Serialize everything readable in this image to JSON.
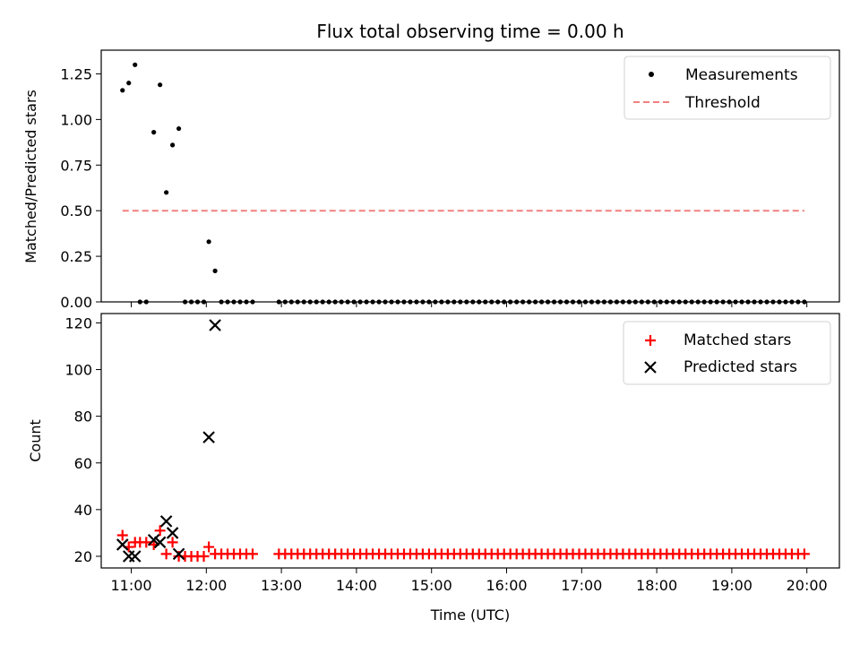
{
  "chart_data": [
    {
      "type": "scatter",
      "title": "Flux total observing time = 0.00 h",
      "xlabel": "",
      "ylabel": "Matched/Predicted stars",
      "xlim": [
        "10:36",
        "20:26"
      ],
      "ylim": [
        0,
        1.38
      ],
      "yticks": [
        "0.00",
        "0.25",
        "0.50",
        "0.75",
        "1.00",
        "1.25"
      ],
      "legend_placement": "top-right",
      "grid": false,
      "series": [
        {
          "name": "Measurements",
          "marker": "dot",
          "color": "#000000",
          "points": [
            {
              "x": "10:53",
              "y": 1.16
            },
            {
              "x": "10:58",
              "y": 1.2
            },
            {
              "x": "11:03",
              "y": 1.3
            },
            {
              "x": "11:07",
              "y": 0.0
            },
            {
              "x": "11:12",
              "y": 0.0
            },
            {
              "x": "11:18",
              "y": 0.93
            },
            {
              "x": "11:23",
              "y": 1.19
            },
            {
              "x": "11:28",
              "y": 0.6
            },
            {
              "x": "11:33",
              "y": 0.86
            },
            {
              "x": "11:38",
              "y": 0.95
            },
            {
              "x": "11:43",
              "y": 0.0
            },
            {
              "x": "11:48",
              "y": 0.0
            },
            {
              "x": "11:53",
              "y": 0.0
            },
            {
              "x": "11:58",
              "y": 0.0
            },
            {
              "x": "12:02",
              "y": 0.33
            },
            {
              "x": "12:07",
              "y": 0.17
            },
            {
              "x": "12:12",
              "y": 0.0
            },
            {
              "x": "12:17",
              "y": 0.0
            },
            {
              "x": "12:22",
              "y": 0.0
            },
            {
              "x": "12:27",
              "y": 0.0
            },
            {
              "x": "12:32",
              "y": 0.0
            },
            {
              "x": "12:37",
              "y": 0.0
            },
            {
              "x": "12:58",
              "y": 0.0
            },
            {
              "x": "13:03",
              "y": 0.0
            },
            {
              "x": "13:08",
              "y": 0.0
            },
            {
              "x": "13:13",
              "y": 0.0
            },
            {
              "x": "13:18",
              "y": 0.0
            },
            {
              "x": "13:23",
              "y": 0.0
            },
            {
              "x": "13:28",
              "y": 0.0
            },
            {
              "x": "13:33",
              "y": 0.0
            },
            {
              "x": "13:38",
              "y": 0.0
            },
            {
              "x": "13:43",
              "y": 0.0
            },
            {
              "x": "13:48",
              "y": 0.0
            },
            {
              "x": "13:53",
              "y": 0.0
            },
            {
              "x": "13:58",
              "y": 0.0
            },
            {
              "x": "14:03",
              "y": 0.0
            },
            {
              "x": "14:08",
              "y": 0.0
            },
            {
              "x": "14:13",
              "y": 0.0
            },
            {
              "x": "14:18",
              "y": 0.0
            },
            {
              "x": "14:23",
              "y": 0.0
            },
            {
              "x": "14:28",
              "y": 0.0
            },
            {
              "x": "14:33",
              "y": 0.0
            },
            {
              "x": "14:38",
              "y": 0.0
            },
            {
              "x": "14:43",
              "y": 0.0
            },
            {
              "x": "14:48",
              "y": 0.0
            },
            {
              "x": "14:53",
              "y": 0.0
            },
            {
              "x": "14:58",
              "y": 0.0
            },
            {
              "x": "15:03",
              "y": 0.0
            },
            {
              "x": "15:08",
              "y": 0.0
            },
            {
              "x": "15:13",
              "y": 0.0
            },
            {
              "x": "15:18",
              "y": 0.0
            },
            {
              "x": "15:23",
              "y": 0.0
            },
            {
              "x": "15:28",
              "y": 0.0
            },
            {
              "x": "15:33",
              "y": 0.0
            },
            {
              "x": "15:38",
              "y": 0.0
            },
            {
              "x": "15:43",
              "y": 0.0
            },
            {
              "x": "15:48",
              "y": 0.0
            },
            {
              "x": "15:53",
              "y": 0.0
            },
            {
              "x": "15:58",
              "y": 0.0
            },
            {
              "x": "16:03",
              "y": 0.0
            },
            {
              "x": "16:08",
              "y": 0.0
            },
            {
              "x": "16:13",
              "y": 0.0
            },
            {
              "x": "16:18",
              "y": 0.0
            },
            {
              "x": "16:23",
              "y": 0.0
            },
            {
              "x": "16:28",
              "y": 0.0
            },
            {
              "x": "16:33",
              "y": 0.0
            },
            {
              "x": "16:38",
              "y": 0.0
            },
            {
              "x": "16:43",
              "y": 0.0
            },
            {
              "x": "16:48",
              "y": 0.0
            },
            {
              "x": "16:53",
              "y": 0.0
            },
            {
              "x": "16:58",
              "y": 0.0
            },
            {
              "x": "17:03",
              "y": 0.0
            },
            {
              "x": "17:08",
              "y": 0.0
            },
            {
              "x": "17:13",
              "y": 0.0
            },
            {
              "x": "17:18",
              "y": 0.0
            },
            {
              "x": "17:23",
              "y": 0.0
            },
            {
              "x": "17:28",
              "y": 0.0
            },
            {
              "x": "17:33",
              "y": 0.0
            },
            {
              "x": "17:38",
              "y": 0.0
            },
            {
              "x": "17:43",
              "y": 0.0
            },
            {
              "x": "17:48",
              "y": 0.0
            },
            {
              "x": "17:53",
              "y": 0.0
            },
            {
              "x": "17:58",
              "y": 0.0
            },
            {
              "x": "18:03",
              "y": 0.0
            },
            {
              "x": "18:08",
              "y": 0.0
            },
            {
              "x": "18:13",
              "y": 0.0
            },
            {
              "x": "18:18",
              "y": 0.0
            },
            {
              "x": "18:23",
              "y": 0.0
            },
            {
              "x": "18:28",
              "y": 0.0
            },
            {
              "x": "18:33",
              "y": 0.0
            },
            {
              "x": "18:38",
              "y": 0.0
            },
            {
              "x": "18:43",
              "y": 0.0
            },
            {
              "x": "18:48",
              "y": 0.0
            },
            {
              "x": "18:53",
              "y": 0.0
            },
            {
              "x": "18:58",
              "y": 0.0
            },
            {
              "x": "19:03",
              "y": 0.0
            },
            {
              "x": "19:08",
              "y": 0.0
            },
            {
              "x": "19:13",
              "y": 0.0
            },
            {
              "x": "19:18",
              "y": 0.0
            },
            {
              "x": "19:23",
              "y": 0.0
            },
            {
              "x": "19:28",
              "y": 0.0
            },
            {
              "x": "19:33",
              "y": 0.0
            },
            {
              "x": "19:38",
              "y": 0.0
            },
            {
              "x": "19:43",
              "y": 0.0
            },
            {
              "x": "19:48",
              "y": 0.0
            },
            {
              "x": "19:53",
              "y": 0.0
            },
            {
              "x": "19:58",
              "y": 0.0
            }
          ]
        },
        {
          "name": "Threshold",
          "type": "line",
          "style": "dashed",
          "color": "#f08080",
          "points": [
            {
              "x": "10:53",
              "y": 0.5
            },
            {
              "x": "19:58",
              "y": 0.5
            }
          ]
        }
      ]
    },
    {
      "type": "scatter",
      "title": "",
      "xlabel": "Time (UTC)",
      "ylabel": "Count",
      "xlim": [
        "10:36",
        "20:26"
      ],
      "ylim": [
        15,
        124
      ],
      "yticks": [
        "20",
        "40",
        "60",
        "80",
        "100",
        "120"
      ],
      "xticks": [
        "11:00",
        "12:00",
        "13:00",
        "14:00",
        "15:00",
        "16:00",
        "17:00",
        "18:00",
        "19:00",
        "20:00"
      ],
      "legend_placement": "top-right",
      "grid": false,
      "series": [
        {
          "name": "Matched stars",
          "marker": "plus",
          "color": "#ff0000",
          "points": [
            {
              "x": "10:53",
              "y": 29
            },
            {
              "x": "10:58",
              "y": 24
            },
            {
              "x": "11:03",
              "y": 26
            },
            {
              "x": "11:07",
              "y": 26
            },
            {
              "x": "11:12",
              "y": 26
            },
            {
              "x": "11:18",
              "y": 25
            },
            {
              "x": "11:23",
              "y": 31
            },
            {
              "x": "11:28",
              "y": 21
            },
            {
              "x": "11:33",
              "y": 26
            },
            {
              "x": "11:38",
              "y": 20
            },
            {
              "x": "11:43",
              "y": 20
            },
            {
              "x": "11:48",
              "y": 20
            },
            {
              "x": "11:53",
              "y": 20
            },
            {
              "x": "11:58",
              "y": 20
            },
            {
              "x": "12:02",
              "y": 24
            },
            {
              "x": "12:07",
              "y": 21
            },
            {
              "x": "12:12",
              "y": 21
            },
            {
              "x": "12:17",
              "y": 21
            },
            {
              "x": "12:22",
              "y": 21
            },
            {
              "x": "12:27",
              "y": 21
            },
            {
              "x": "12:32",
              "y": 21
            },
            {
              "x": "12:37",
              "y": 21
            },
            {
              "x": "12:58",
              "y": 21
            },
            {
              "x": "13:03",
              "y": 21
            },
            {
              "x": "13:08",
              "y": 21
            },
            {
              "x": "13:13",
              "y": 21
            },
            {
              "x": "13:18",
              "y": 21
            },
            {
              "x": "13:23",
              "y": 21
            },
            {
              "x": "13:28",
              "y": 21
            },
            {
              "x": "13:33",
              "y": 21
            },
            {
              "x": "13:38",
              "y": 21
            },
            {
              "x": "13:43",
              "y": 21
            },
            {
              "x": "13:48",
              "y": 21
            },
            {
              "x": "13:53",
              "y": 21
            },
            {
              "x": "13:58",
              "y": 21
            },
            {
              "x": "14:03",
              "y": 21
            },
            {
              "x": "14:08",
              "y": 21
            },
            {
              "x": "14:13",
              "y": 21
            },
            {
              "x": "14:18",
              "y": 21
            },
            {
              "x": "14:23",
              "y": 21
            },
            {
              "x": "14:28",
              "y": 21
            },
            {
              "x": "14:33",
              "y": 21
            },
            {
              "x": "14:38",
              "y": 21
            },
            {
              "x": "14:43",
              "y": 21
            },
            {
              "x": "14:48",
              "y": 21
            },
            {
              "x": "14:53",
              "y": 21
            },
            {
              "x": "14:58",
              "y": 21
            },
            {
              "x": "15:03",
              "y": 21
            },
            {
              "x": "15:08",
              "y": 21
            },
            {
              "x": "15:13",
              "y": 21
            },
            {
              "x": "15:18",
              "y": 21
            },
            {
              "x": "15:23",
              "y": 21
            },
            {
              "x": "15:28",
              "y": 21
            },
            {
              "x": "15:33",
              "y": 21
            },
            {
              "x": "15:38",
              "y": 21
            },
            {
              "x": "15:43",
              "y": 21
            },
            {
              "x": "15:48",
              "y": 21
            },
            {
              "x": "15:53",
              "y": 21
            },
            {
              "x": "15:58",
              "y": 21
            },
            {
              "x": "16:03",
              "y": 21
            },
            {
              "x": "16:08",
              "y": 21
            },
            {
              "x": "16:13",
              "y": 21
            },
            {
              "x": "16:18",
              "y": 21
            },
            {
              "x": "16:23",
              "y": 21
            },
            {
              "x": "16:28",
              "y": 21
            },
            {
              "x": "16:33",
              "y": 21
            },
            {
              "x": "16:38",
              "y": 21
            },
            {
              "x": "16:43",
              "y": 21
            },
            {
              "x": "16:48",
              "y": 21
            },
            {
              "x": "16:53",
              "y": 21
            },
            {
              "x": "16:58",
              "y": 21
            },
            {
              "x": "17:03",
              "y": 21
            },
            {
              "x": "17:08",
              "y": 21
            },
            {
              "x": "17:13",
              "y": 21
            },
            {
              "x": "17:18",
              "y": 21
            },
            {
              "x": "17:23",
              "y": 21
            },
            {
              "x": "17:28",
              "y": 21
            },
            {
              "x": "17:33",
              "y": 21
            },
            {
              "x": "17:38",
              "y": 21
            },
            {
              "x": "17:43",
              "y": 21
            },
            {
              "x": "17:48",
              "y": 21
            },
            {
              "x": "17:53",
              "y": 21
            },
            {
              "x": "17:58",
              "y": 21
            },
            {
              "x": "18:03",
              "y": 21
            },
            {
              "x": "18:08",
              "y": 21
            },
            {
              "x": "18:13",
              "y": 21
            },
            {
              "x": "18:18",
              "y": 21
            },
            {
              "x": "18:23",
              "y": 21
            },
            {
              "x": "18:28",
              "y": 21
            },
            {
              "x": "18:33",
              "y": 21
            },
            {
              "x": "18:38",
              "y": 21
            },
            {
              "x": "18:43",
              "y": 21
            },
            {
              "x": "18:48",
              "y": 21
            },
            {
              "x": "18:53",
              "y": 21
            },
            {
              "x": "18:58",
              "y": 21
            },
            {
              "x": "19:03",
              "y": 21
            },
            {
              "x": "19:08",
              "y": 21
            },
            {
              "x": "19:13",
              "y": 21
            },
            {
              "x": "19:18",
              "y": 21
            },
            {
              "x": "19:23",
              "y": 21
            },
            {
              "x": "19:28",
              "y": 21
            },
            {
              "x": "19:33",
              "y": 21
            },
            {
              "x": "19:38",
              "y": 21
            },
            {
              "x": "19:43",
              "y": 21
            },
            {
              "x": "19:48",
              "y": 21
            },
            {
              "x": "19:53",
              "y": 21
            },
            {
              "x": "19:58",
              "y": 21
            }
          ]
        },
        {
          "name": "Predicted stars",
          "marker": "x",
          "color": "#000000",
          "points": [
            {
              "x": "10:53",
              "y": 25
            },
            {
              "x": "10:58",
              "y": 20
            },
            {
              "x": "11:03",
              "y": 20
            },
            {
              "x": "11:18",
              "y": 27
            },
            {
              "x": "11:23",
              "y": 26
            },
            {
              "x": "11:28",
              "y": 35
            },
            {
              "x": "11:33",
              "y": 30
            },
            {
              "x": "11:38",
              "y": 21
            },
            {
              "x": "12:02",
              "y": 71
            },
            {
              "x": "12:07",
              "y": 119
            }
          ]
        }
      ]
    }
  ]
}
